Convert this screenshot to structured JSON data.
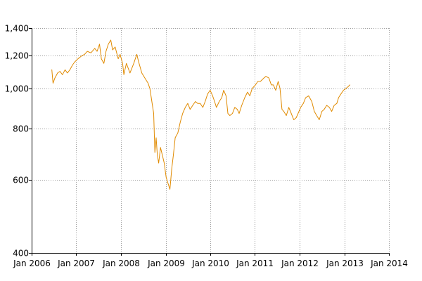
{
  "chart_data": {
    "type": "line",
    "title": "",
    "xlabel": "",
    "ylabel": "",
    "yscale": "log",
    "ylim": [
      400,
      1400
    ],
    "xlim": [
      "2006-01-01",
      "2014-01-01"
    ],
    "grid": true,
    "legend": "none",
    "x_ticks": [
      "Jan 2006",
      "Jan 2007",
      "Jan 2008",
      "Jan 2009",
      "Jan 2010",
      "Jan 2011",
      "Jan 2012",
      "Jan 2013",
      "Jan 2014"
    ],
    "y_ticks": [
      "400",
      "600",
      "800",
      "1,000",
      "1,200",
      "1,400"
    ],
    "y_tick_values": [
      400,
      600,
      800,
      1000,
      1200,
      1400
    ],
    "colors": {
      "series": "#e08a00",
      "grid": "#9e9e9e"
    },
    "series": [
      {
        "x": [
          "2006-06-15",
          "2006-06-25",
          "2006-07-10",
          "2006-08-01",
          "2006-08-20",
          "2006-09-10",
          "2006-10-01",
          "2006-10-20",
          "2006-11-10",
          "2006-12-01",
          "2006-12-20",
          "2007-01-15",
          "2007-02-15",
          "2007-03-10",
          "2007-04-01",
          "2007-05-01",
          "2007-06-01",
          "2007-06-20",
          "2007-07-10",
          "2007-07-25",
          "2007-08-15",
          "2007-09-01",
          "2007-09-20",
          "2007-10-10",
          "2007-10-25",
          "2007-11-15",
          "2007-12-10",
          "2007-12-25",
          "2008-01-15",
          "2008-01-25",
          "2008-02-15",
          "2008-03-15",
          "2008-04-15",
          "2008-05-10",
          "2008-05-25",
          "2008-06-20",
          "2008-07-15",
          "2008-08-10",
          "2008-08-25",
          "2008-09-10",
          "2008-09-25",
          "2008-10-05",
          "2008-10-15",
          "2008-10-25",
          "2008-11-05",
          "2008-11-20",
          "2008-12-05",
          "2008-12-20",
          "2009-01-05",
          "2009-01-20",
          "2009-02-05",
          "2009-02-20",
          "2009-03-05",
          "2009-03-20",
          "2009-04-10",
          "2009-05-01",
          "2009-05-20",
          "2009-06-10",
          "2009-07-01",
          "2009-07-20",
          "2009-08-10",
          "2009-09-01",
          "2009-09-20",
          "2009-10-10",
          "2009-11-01",
          "2009-11-20",
          "2009-12-10",
          "2009-12-31",
          "2010-01-20",
          "2010-02-05",
          "2010-02-20",
          "2010-03-15",
          "2010-04-05",
          "2010-04-20",
          "2010-05-10",
          "2010-05-25",
          "2010-06-10",
          "2010-07-01",
          "2010-07-20",
          "2010-08-10",
          "2010-08-25",
          "2010-09-15",
          "2010-10-10",
          "2010-11-01",
          "2010-11-20",
          "2010-12-10",
          "2011-01-05",
          "2011-01-25",
          "2011-02-15",
          "2011-03-01",
          "2011-03-15",
          "2011-04-01",
          "2011-04-25",
          "2011-05-15",
          "2011-06-01",
          "2011-06-20",
          "2011-07-10",
          "2011-07-25",
          "2011-08-10",
          "2011-08-25",
          "2011-09-15",
          "2011-10-05",
          "2011-10-25",
          "2011-11-15",
          "2011-12-05",
          "2011-12-20",
          "2012-01-10",
          "2012-02-01",
          "2012-02-20",
          "2012-03-15",
          "2012-04-10",
          "2012-05-01",
          "2012-05-20",
          "2012-06-10",
          "2012-07-01",
          "2012-07-20",
          "2012-08-10",
          "2012-09-01",
          "2012-09-20",
          "2012-10-10",
          "2012-11-01",
          "2012-11-15",
          "2012-12-05",
          "2012-12-25",
          "2013-01-15",
          "2013-02-01",
          "2013-02-15"
        ],
        "y": [
          1110,
          1030,
          1060,
          1090,
          1100,
          1080,
          1110,
          1090,
          1110,
          1140,
          1160,
          1180,
          1200,
          1210,
          1230,
          1220,
          1250,
          1230,
          1280,
          1180,
          1150,
          1230,
          1280,
          1310,
          1240,
          1260,
          1180,
          1210,
          1150,
          1080,
          1150,
          1090,
          1150,
          1210,
          1160,
          1090,
          1060,
          1030,
          1000,
          930,
          870,
          700,
          760,
          690,
          660,
          720,
          690,
          660,
          610,
          590,
          570,
          640,
          690,
          760,
          780,
          830,
          870,
          900,
          920,
          890,
          910,
          930,
          920,
          920,
          900,
          930,
          970,
          990,
          960,
          930,
          900,
          930,
          950,
          990,
          960,
          870,
          860,
          870,
          900,
          890,
          870,
          910,
          950,
          980,
          960,
          1000,
          1020,
          1040,
          1040,
          1050,
          1060,
          1070,
          1060,
          1020,
          1020,
          990,
          1040,
          1000,
          890,
          880,
          860,
          900,
          870,
          840,
          850,
          870,
          900,
          920,
          950,
          960,
          930,
          880,
          860,
          840,
          880,
          890,
          910,
          900,
          880,
          910,
          920,
          950,
          970,
          990,
          1000,
          1010,
          1020
        ]
      }
    ]
  }
}
